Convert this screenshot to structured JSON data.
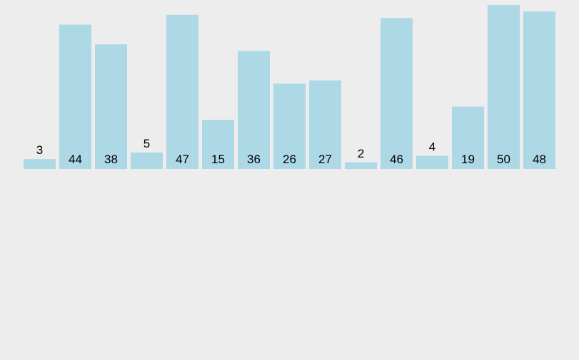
{
  "chart_data": {
    "type": "bar",
    "values": [
      3,
      44,
      38,
      5,
      47,
      15,
      36,
      26,
      27,
      2,
      46,
      4,
      19,
      50,
      48
    ],
    "data_labels": [
      "3",
      "44",
      "38",
      "5",
      "47",
      "15",
      "36",
      "26",
      "27",
      "2",
      "46",
      "4",
      "19",
      "50",
      "48"
    ],
    "ylim": [
      0,
      50
    ],
    "grid": false,
    "bar_color": "#add8e6",
    "background": "#ededed"
  }
}
